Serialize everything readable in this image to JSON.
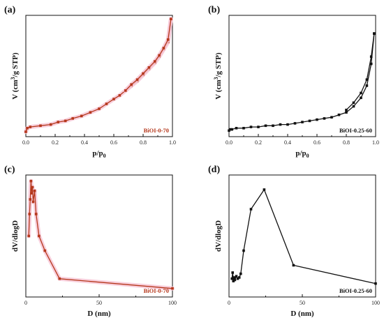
{
  "colors": {
    "brown": "#b5381c",
    "black": "#111111",
    "pink": "#f7c7d6"
  },
  "chart_data": [
    {
      "panel_label": "(a)",
      "type": "line",
      "legend": "BiOI-0-70",
      "color": "#b5381c",
      "glow": true,
      "xlabel": "p/p",
      "xlabel_sub": "0",
      "ylabel_pre": "V (cm",
      "ylabel_sup": "3",
      "ylabel_post": "/g STP)",
      "xlim": [
        0,
        1.0
      ],
      "ylim": [
        0,
        1.0
      ],
      "show_y_ticks": false,
      "xticks": [
        0.0,
        0.2,
        0.4,
        0.6,
        0.8,
        1.0
      ],
      "xtick_labels": [
        "0.0",
        "0.2",
        "0.4",
        "0.6",
        "0.8",
        "1.0"
      ],
      "series": [
        {
          "x": [
            0.0,
            0.01,
            0.03,
            0.1,
            0.17,
            0.22,
            0.27,
            0.32,
            0.38,
            0.44,
            0.5,
            0.55,
            0.6,
            0.64,
            0.68,
            0.72,
            0.76,
            0.8,
            0.84,
            0.88,
            0.91,
            0.94,
            0.97,
            0.99
          ],
          "y": [
            0.04,
            0.07,
            0.08,
            0.09,
            0.1,
            0.12,
            0.13,
            0.15,
            0.17,
            0.2,
            0.23,
            0.27,
            0.31,
            0.34,
            0.38,
            0.42,
            0.46,
            0.51,
            0.56,
            0.61,
            0.66,
            0.72,
            0.78,
            0.97
          ]
        },
        {
          "x": [
            0.99,
            0.97,
            0.94,
            0.91,
            0.88,
            0.84,
            0.8,
            0.76,
            0.72,
            0.68
          ],
          "y": [
            0.97,
            0.8,
            0.73,
            0.67,
            0.62,
            0.57,
            0.52,
            0.47,
            0.43,
            0.38
          ]
        }
      ]
    },
    {
      "panel_label": "(b)",
      "type": "line",
      "legend": "BiOI-0.25-60",
      "color": "#111111",
      "glow": false,
      "xlabel": "p/p",
      "xlabel_sub": "0",
      "ylabel_pre": "V (cm",
      "ylabel_sup": "3",
      "ylabel_post": "/g STP)",
      "xlim": [
        0,
        1.0
      ],
      "ylim": [
        0,
        1.0
      ],
      "show_y_ticks": false,
      "xticks": [
        0.0,
        0.2,
        0.4,
        0.6,
        0.8,
        1.0
      ],
      "xtick_labels": [
        "0.0",
        "0.2",
        "0.4",
        "0.6",
        "0.8",
        "1.0"
      ],
      "series": [
        {
          "x": [
            0.0,
            0.01,
            0.02,
            0.05,
            0.1,
            0.15,
            0.2,
            0.25,
            0.3,
            0.35,
            0.4,
            0.45,
            0.5,
            0.55,
            0.6,
            0.65,
            0.7,
            0.75,
            0.8,
            0.85,
            0.9,
            0.94,
            0.97,
            0.99
          ],
          "y": [
            0.05,
            0.06,
            0.06,
            0.07,
            0.07,
            0.08,
            0.08,
            0.09,
            0.09,
            0.1,
            0.1,
            0.11,
            0.12,
            0.13,
            0.14,
            0.15,
            0.16,
            0.18,
            0.2,
            0.25,
            0.32,
            0.42,
            0.6,
            0.85
          ]
        },
        {
          "x": [
            0.99,
            0.97,
            0.94,
            0.9,
            0.85,
            0.8
          ],
          "y": [
            0.85,
            0.66,
            0.47,
            0.36,
            0.28,
            0.22
          ]
        }
      ]
    },
    {
      "panel_label": "(c)",
      "type": "line",
      "legend": "BiOI-0-70",
      "color": "#b5381c",
      "glow": true,
      "xlabel": "D (nm)",
      "ylabel_pre": "dV/dlogD",
      "xlim": [
        0,
        100
      ],
      "ylim": [
        0,
        1.0
      ],
      "show_y_ticks": false,
      "xticks": [
        0,
        50,
        100
      ],
      "xtick_labels": [
        "0",
        "50",
        "100"
      ],
      "series": [
        {
          "x": [
            2,
            2.5,
            3,
            3.5,
            4,
            4.5,
            5,
            6,
            7,
            9,
            13,
            23,
            100
          ],
          "y": [
            0.5,
            0.68,
            0.8,
            0.95,
            0.85,
            0.9,
            0.78,
            0.87,
            0.68,
            0.5,
            0.38,
            0.15,
            0.07
          ]
        }
      ]
    },
    {
      "panel_label": "(d)",
      "type": "line",
      "legend": "BiOI-0.25-60",
      "color": "#111111",
      "glow": false,
      "xlabel": "D (nm)",
      "ylabel_pre": "dV/dlogD",
      "xlim": [
        0,
        100
      ],
      "ylim": [
        0,
        1.0
      ],
      "show_y_ticks": false,
      "xticks": [
        0,
        50,
        100
      ],
      "xtick_labels": [
        "0",
        "50",
        "100"
      ],
      "series": [
        {
          "x": [
            2,
            2.5,
            3,
            3.5,
            4,
            5,
            6,
            7,
            8,
            10,
            15,
            24,
            44,
            100
          ],
          "y": [
            0.15,
            0.2,
            0.13,
            0.16,
            0.14,
            0.17,
            0.15,
            0.16,
            0.19,
            0.38,
            0.72,
            0.88,
            0.26,
            0.11
          ]
        }
      ]
    }
  ]
}
